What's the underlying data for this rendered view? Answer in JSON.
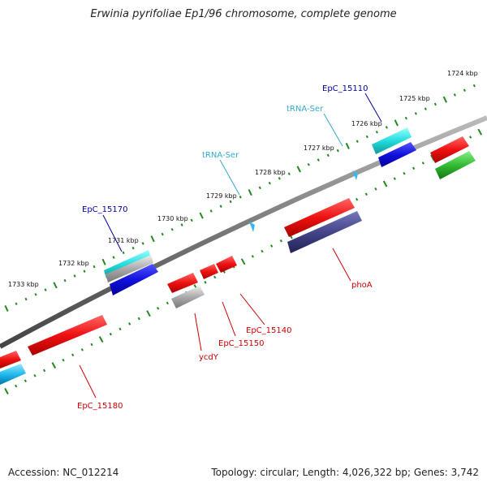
{
  "title": "Erwinia pyrifoliae Ep1/96 chromosome, complete genome",
  "footer": {
    "accession": "Accession: NC_012214",
    "topology": "Topology: circular; Length: 4,026,322 bp; Genes: 3,742"
  },
  "scale_ticks": [
    "1724 kbp",
    "1725 kbp",
    "1726 kbp",
    "1727 kbp",
    "1728 kbp",
    "1729 kbp",
    "1730 kbp",
    "1731 kbp",
    "1732 kbp",
    "1733 kbp"
  ],
  "feature_labels": [
    {
      "text": "EpC_15110",
      "color": "#000099"
    },
    {
      "text": "tRNA-Ser",
      "color": "#33aacc"
    },
    {
      "text": "tRNA-Ser",
      "color": "#33aacc"
    },
    {
      "text": "EpC_15170",
      "color": "#000099"
    },
    {
      "text": "phoA",
      "color": "#cc0000"
    },
    {
      "text": "EpC_15140",
      "color": "#cc0000"
    },
    {
      "text": "EpC_15150",
      "color": "#cc0000"
    },
    {
      "text": "ycdY",
      "color": "#cc0000"
    },
    {
      "text": "EpC_15180",
      "color": "#cc0000"
    }
  ],
  "colors": {
    "backbone": "#777777",
    "ticks": "#228822",
    "red": "#ee1111",
    "blue": "#1111dd",
    "cyan": "#22dddd",
    "gray": "#aaaaaa",
    "purple": "#44448a",
    "green": "#33bb33",
    "light_blue": "#22bbee"
  }
}
